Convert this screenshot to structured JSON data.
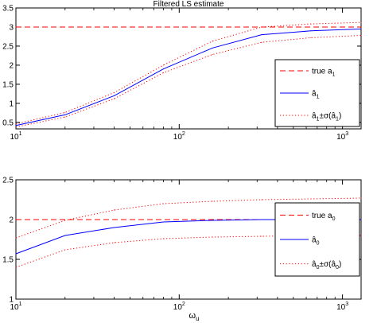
{
  "figure": {
    "xlabel_main": "ω",
    "xlabel_sub": "u"
  },
  "colors": {
    "true": "#ff0000",
    "estimate": "#0000ff",
    "bound": "#ff0000",
    "axis": "#000000"
  },
  "chart_data": [
    {
      "type": "line",
      "title": "Filtered LS estimate",
      "xscale": "log",
      "xlim": [
        10,
        1300
      ],
      "ylim": [
        0.33,
        3.5
      ],
      "xticks": [
        10,
        100,
        1000
      ],
      "xtick_labels": [
        {
          "base": "10",
          "exp": "1"
        },
        {
          "base": "10",
          "exp": "2"
        },
        {
          "base": "10",
          "exp": "3"
        }
      ],
      "yticks": [
        0.5,
        1,
        1.5,
        2,
        2.5,
        3,
        3.5
      ],
      "ytick_labels": [
        "0.5",
        "1",
        "1.5",
        "2",
        "2.5",
        "3",
        "3.5"
      ],
      "legend_position": "right",
      "legend": [
        {
          "label": "true a",
          "sub": "1",
          "style": "dashed",
          "key": "true"
        },
        {
          "label": "â",
          "sub": "1",
          "style": "solid",
          "key": "estimate"
        },
        {
          "label": "â",
          "sub": "1",
          "mid": "±σ(â",
          "sub2": "1",
          "tail": ")",
          "style": "dotted",
          "key": "bound"
        }
      ],
      "series": [
        {
          "key": "true",
          "style": "dashed",
          "x": [
            10,
            1300
          ],
          "y": [
            3.0,
            3.0
          ]
        },
        {
          "key": "estimate",
          "style": "solid",
          "x": [
            10,
            20,
            40,
            80,
            160,
            320,
            640,
            1300
          ],
          "y": [
            0.42,
            0.7,
            1.2,
            1.9,
            2.45,
            2.8,
            2.9,
            2.95
          ]
        },
        {
          "key": "bound",
          "style": "dotted",
          "x": [
            10,
            20,
            40,
            80,
            160,
            320,
            640,
            1300
          ],
          "y": [
            0.46,
            0.76,
            1.28,
            2.0,
            2.63,
            3.0,
            3.08,
            3.12
          ]
        },
        {
          "key": "bound",
          "style": "dotted",
          "x": [
            10,
            20,
            40,
            80,
            160,
            320,
            640,
            1300
          ],
          "y": [
            0.38,
            0.64,
            1.12,
            1.8,
            2.28,
            2.6,
            2.72,
            2.78
          ]
        }
      ]
    },
    {
      "type": "line",
      "title": "",
      "xscale": "log",
      "xlim": [
        10,
        1300
      ],
      "ylim": [
        1,
        2.5
      ],
      "xticks": [
        10,
        100,
        1000
      ],
      "xtick_labels": [
        {
          "base": "10",
          "exp": "1"
        },
        {
          "base": "10",
          "exp": "2"
        },
        {
          "base": "10",
          "exp": "3"
        }
      ],
      "yticks": [
        1,
        1.5,
        2,
        2.5
      ],
      "ytick_labels": [
        "1",
        "1.5",
        "2",
        "2.5"
      ],
      "legend_position": "right",
      "legend": [
        {
          "label": "true a",
          "sub": "0",
          "style": "dashed",
          "key": "true"
        },
        {
          "label": "â",
          "sub": "0",
          "style": "solid",
          "key": "estimate"
        },
        {
          "label": "â",
          "sub": "0",
          "mid": "±σ(â",
          "sub2": "0",
          "tail": ")",
          "style": "dotted",
          "key": "bound"
        }
      ],
      "series": [
        {
          "key": "true",
          "style": "dashed",
          "x": [
            10,
            1300
          ],
          "y": [
            2.0,
            2.0
          ]
        },
        {
          "key": "estimate",
          "style": "solid",
          "x": [
            10,
            20,
            40,
            80,
            160,
            320,
            640,
            1300
          ],
          "y": [
            1.57,
            1.8,
            1.9,
            1.97,
            1.99,
            2.0,
            2.0,
            2.0
          ]
        },
        {
          "key": "bound",
          "style": "dotted",
          "x": [
            10,
            20,
            40,
            80,
            160,
            320,
            640,
            1300
          ],
          "y": [
            1.77,
            1.99,
            2.12,
            2.2,
            2.23,
            2.25,
            2.26,
            2.27
          ]
        },
        {
          "key": "bound",
          "style": "dotted",
          "x": [
            10,
            20,
            40,
            80,
            160,
            320,
            640,
            1300
          ],
          "y": [
            1.4,
            1.62,
            1.71,
            1.76,
            1.78,
            1.79,
            1.8,
            1.8
          ]
        }
      ]
    }
  ]
}
